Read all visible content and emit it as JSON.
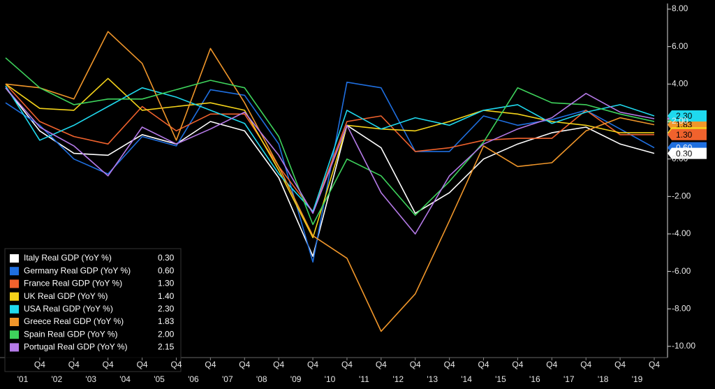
{
  "chart_data": {
    "type": "line",
    "categories": [
      null,
      "Q4",
      "Q4",
      "Q4",
      "Q4",
      "Q4",
      "Q4",
      "Q4",
      "Q4",
      "Q4",
      "Q4",
      "Q4",
      "Q4",
      "Q4",
      "Q4",
      "Q4",
      "Q4",
      "Q4",
      "Q4",
      "Q4"
    ],
    "year_labels": [
      "'01",
      "'02",
      "'03",
      "'04",
      "'05",
      "'06",
      "'07",
      "'08",
      "'09",
      "'10",
      "'11",
      "'12",
      "'13",
      "'14",
      "'15",
      "'16",
      "'17",
      "'18",
      "'19"
    ],
    "ylim": [
      -10.6,
      8.3
    ],
    "yticks": [
      {
        "value": 8,
        "label": "8.00"
      },
      {
        "value": 6,
        "label": "6.00"
      },
      {
        "value": 4,
        "label": "4.00"
      },
      {
        "value": 2,
        "label": "2.00"
      },
      {
        "value": 0,
        "label": "0.00"
      },
      {
        "value": -2,
        "label": "-2.00"
      },
      {
        "value": -4,
        "label": "-4.00"
      },
      {
        "value": -6,
        "label": "-6.00"
      },
      {
        "value": -8,
        "label": "-8.00"
      },
      {
        "value": -10,
        "label": "-10.00"
      }
    ],
    "series": [
      {
        "name": "Italy Real GDP (YoY %)",
        "color": "#ffffff",
        "legend_value": "0.30",
        "values": [
          3.8,
          1.5,
          0.3,
          0.2,
          1.3,
          0.8,
          2.0,
          1.5,
          -1.0,
          -5.2,
          1.8,
          0.6,
          -2.9,
          -1.8,
          0.0,
          0.8,
          1.4,
          1.7,
          0.8,
          0.3
        ]
      },
      {
        "name": "Germany Real GDP (YoY %)",
        "color": "#1f6fe0",
        "legend_value": "0.60",
        "values": [
          3.0,
          1.8,
          0.0,
          -0.8,
          1.2,
          0.7,
          3.7,
          3.4,
          0.8,
          -5.5,
          4.1,
          3.8,
          0.4,
          0.4,
          2.3,
          1.8,
          2.1,
          2.6,
          1.6,
          0.6
        ]
      },
      {
        "name": "France Real GDP (YoY %)",
        "color": "#f0622d",
        "legend_value": "1.30",
        "values": [
          4.0,
          2.0,
          1.2,
          0.8,
          2.8,
          1.5,
          2.4,
          2.4,
          -0.4,
          -2.8,
          2.0,
          2.3,
          0.4,
          0.6,
          1.0,
          1.1,
          1.1,
          2.6,
          1.3,
          1.3
        ]
      },
      {
        "name": "UK Real GDP (YoY %)",
        "color": "#f4d31a",
        "legend_value": "1.40",
        "values": [
          4.0,
          2.7,
          2.6,
          4.3,
          2.6,
          2.8,
          3.0,
          2.6,
          -0.6,
          -4.2,
          1.8,
          1.6,
          1.5,
          2.0,
          2.6,
          2.4,
          2.0,
          1.8,
          1.4,
          1.4
        ]
      },
      {
        "name": "USA Real GDP (YoY %)",
        "color": "#1fd9ee",
        "legend_value": "2.30",
        "values": [
          3.9,
          1.0,
          1.8,
          2.8,
          3.8,
          3.3,
          2.6,
          1.9,
          -0.8,
          -2.8,
          2.6,
          1.6,
          2.2,
          1.8,
          2.6,
          2.9,
          1.9,
          2.5,
          2.9,
          2.3
        ]
      },
      {
        "name": "Greece Real GDP (YoY %)",
        "color": "#f0962a",
        "legend_value": "1.83",
        "values": [
          4.0,
          3.8,
          3.2,
          6.8,
          5.1,
          1.0,
          5.9,
          3.0,
          -0.4,
          -4.1,
          -5.3,
          -9.2,
          -7.2,
          -3.3,
          0.7,
          -0.4,
          -0.2,
          1.5,
          2.2,
          1.83
        ]
      },
      {
        "name": "Spain Real GDP (YoY %)",
        "color": "#3ed35c",
        "legend_value": "2.00",
        "values": [
          5.4,
          3.8,
          2.9,
          3.2,
          3.2,
          3.7,
          4.2,
          3.8,
          1.2,
          -3.5,
          0.0,
          -0.9,
          -3.0,
          -1.2,
          0.9,
          3.8,
          3.0,
          2.9,
          2.4,
          2.0
        ]
      },
      {
        "name": "Portugal Real GDP (YoY %)",
        "color": "#b57ae8",
        "legend_value": "2.15",
        "values": [
          3.8,
          1.7,
          0.7,
          -0.9,
          1.7,
          0.8,
          1.6,
          2.5,
          0.2,
          -2.9,
          1.8,
          -1.8,
          -4.0,
          -0.9,
          0.8,
          1.6,
          2.2,
          3.5,
          2.5,
          2.15
        ]
      }
    ]
  }
}
